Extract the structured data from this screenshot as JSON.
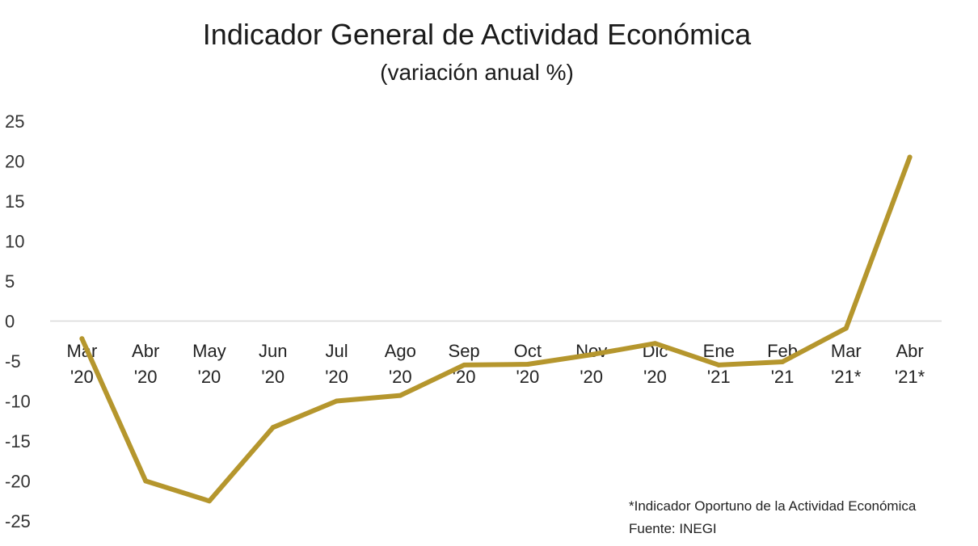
{
  "chart_data": {
    "type": "line",
    "title": "Indicador General de Actividad Económica",
    "subtitle": "(variación anual %)",
    "xlabel": "",
    "ylabel": "",
    "categories": [
      [
        "Mar",
        "'20"
      ],
      [
        "Abr",
        "'20"
      ],
      [
        "May",
        "'20"
      ],
      [
        "Jun",
        "'20"
      ],
      [
        "Jul",
        "'20"
      ],
      [
        "Ago",
        "'20"
      ],
      [
        "Sep",
        "'20"
      ],
      [
        "Oct",
        "'20"
      ],
      [
        "Nov",
        "'20"
      ],
      [
        "Dic",
        "'20"
      ],
      [
        "Ene",
        "'21"
      ],
      [
        "Feb",
        "'21"
      ],
      [
        "Mar",
        "'21*"
      ],
      [
        "Abr",
        "'21*"
      ]
    ],
    "series": [
      {
        "values": [
          -2.2,
          -20.0,
          -22.5,
          -13.3,
          -10.0,
          -9.3,
          -5.5,
          -5.4,
          -4.2,
          -2.8,
          -5.5,
          -5.1,
          -0.9,
          20.5
        ],
        "color": "#b5962d"
      }
    ],
    "ylim": [
      -25,
      25
    ],
    "yticks": [
      25,
      20,
      15,
      10,
      5,
      0,
      -5,
      -10,
      -15,
      -20,
      -25
    ],
    "grid": false,
    "legend": "none",
    "axis_color": "#d9d9d9"
  },
  "notes": {
    "line1": "*Indicador Oportuno de la Actividad Económica",
    "line2": "Fuente: INEGI"
  }
}
